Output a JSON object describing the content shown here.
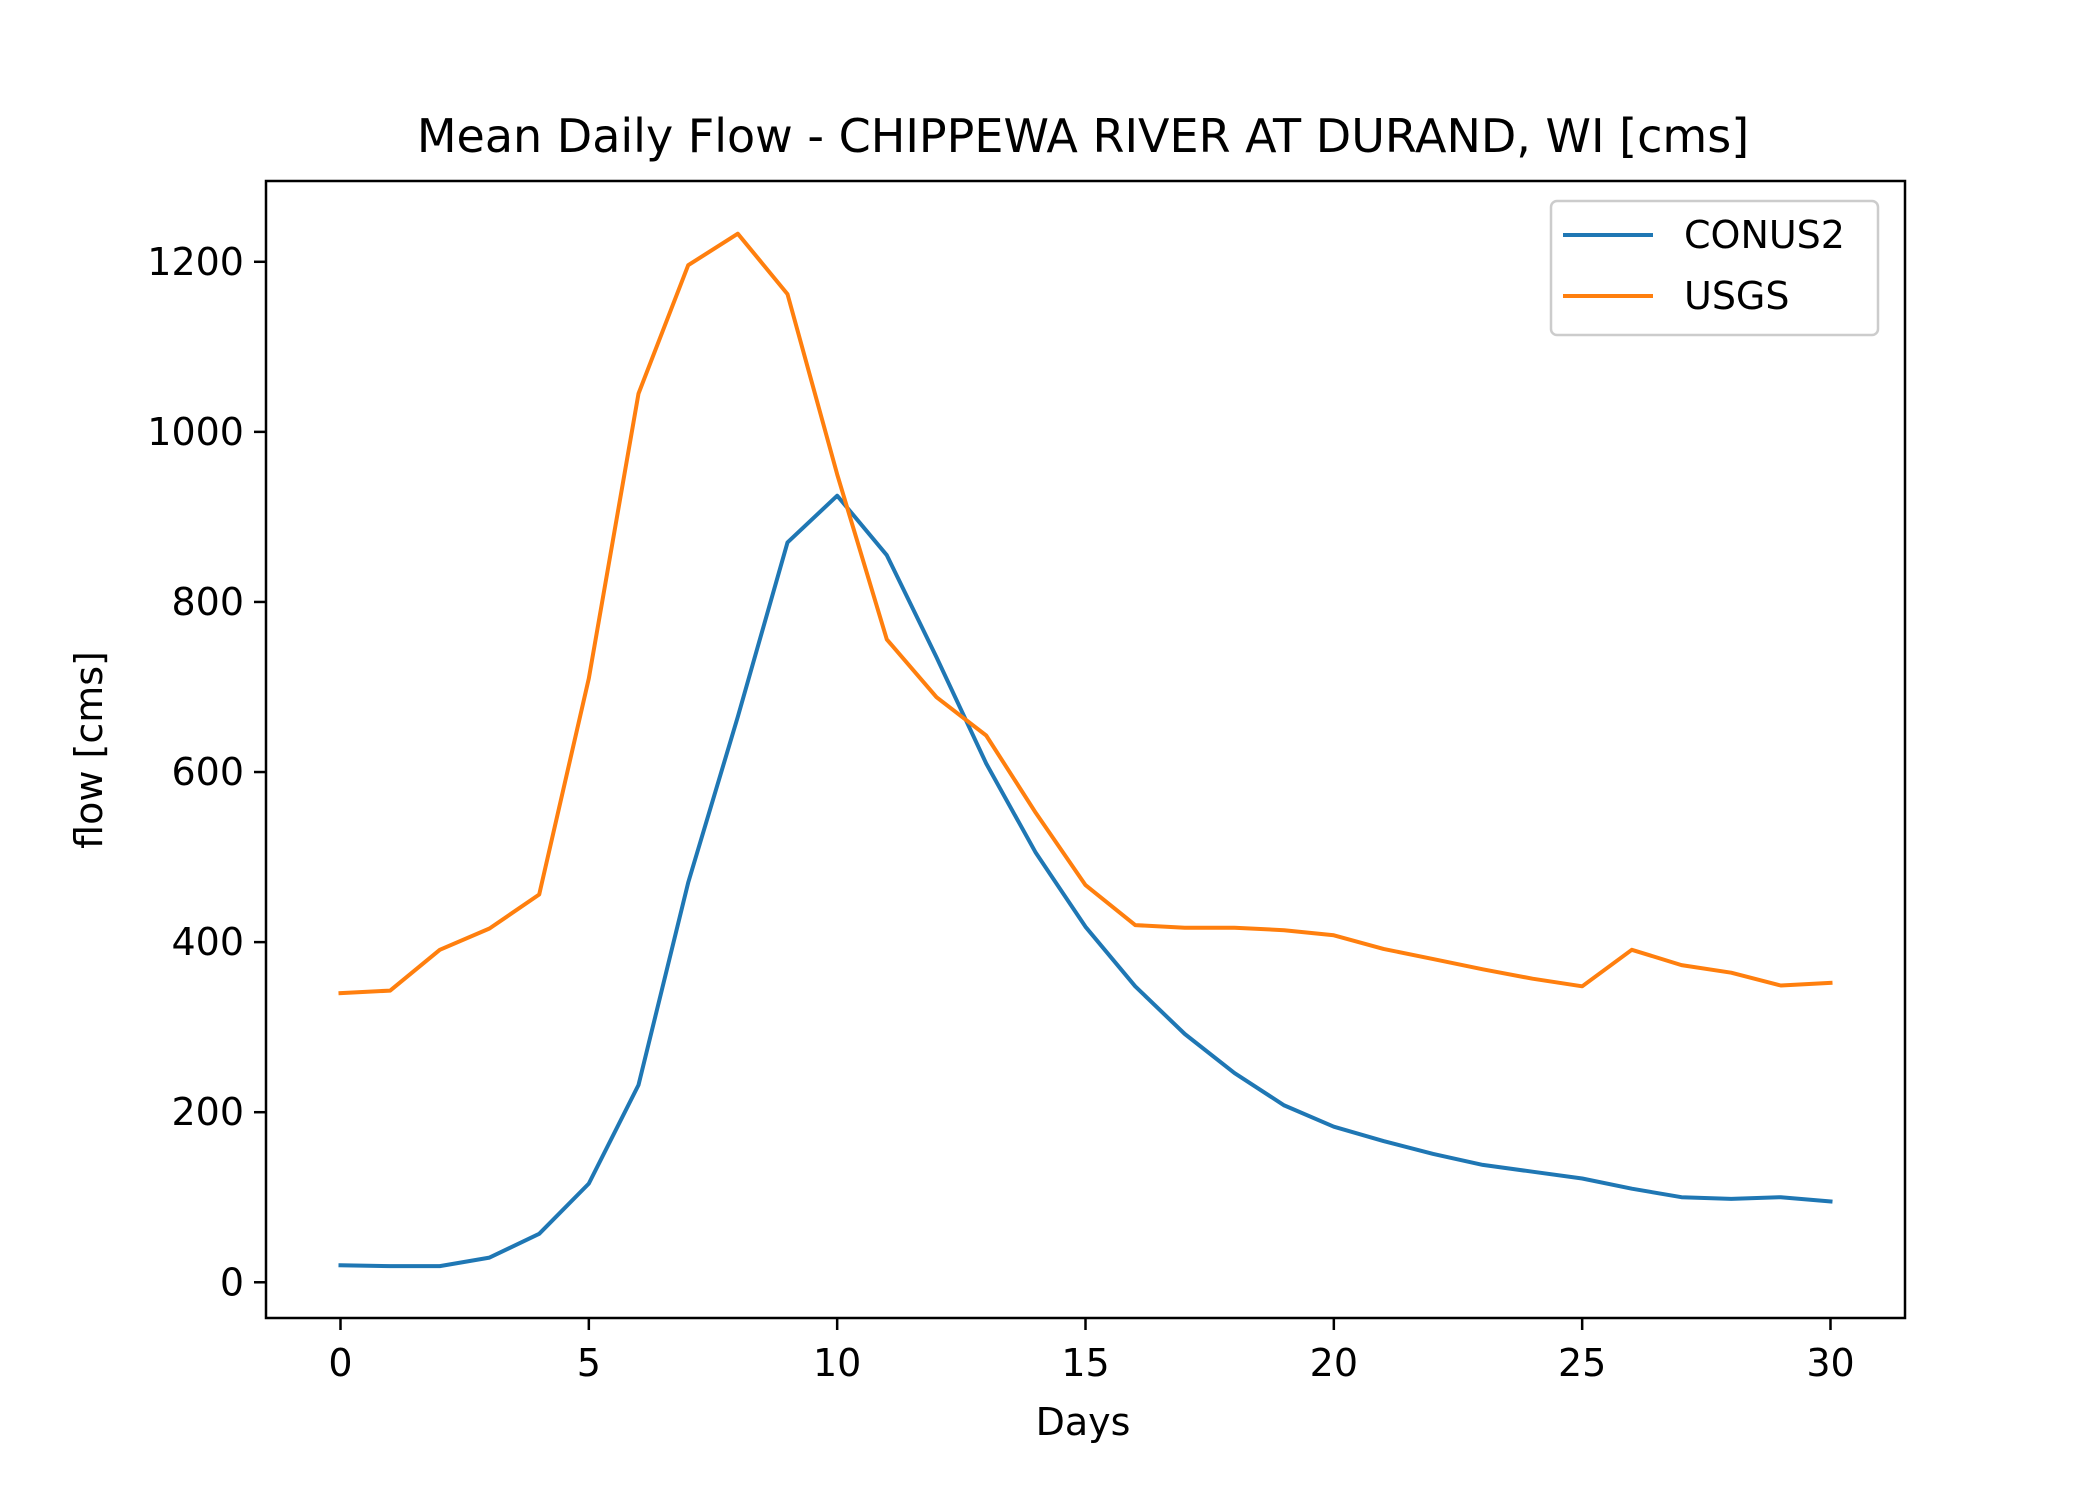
{
  "chart_data": {
    "type": "line",
    "title": "Mean Daily Flow - CHIPPEWA RIVER AT DURAND, WI [cms]",
    "xlabel": "Days",
    "ylabel": "flow [cms]",
    "xlim": [
      -1.5,
      31.5
    ],
    "ylim": [
      -42,
      1295
    ],
    "xticks": [
      0,
      5,
      10,
      15,
      20,
      25,
      30
    ],
    "yticks": [
      0,
      200,
      400,
      600,
      800,
      1000,
      1200
    ],
    "grid": false,
    "legend_position": "top-right",
    "x": [
      0,
      1,
      2,
      3,
      4,
      5,
      6,
      7,
      8,
      9,
      10,
      11,
      12,
      13,
      14,
      15,
      16,
      17,
      18,
      19,
      20,
      21,
      22,
      23,
      24,
      25,
      26,
      27,
      28,
      29,
      30
    ],
    "series": [
      {
        "name": "CONUS2",
        "color": "#1f77b4",
        "values": [
          20,
          19,
          19,
          29,
          57,
          116,
          232,
          470,
          665,
          870,
          925,
          855,
          735,
          610,
          505,
          418,
          348,
          292,
          246,
          208,
          183,
          166,
          151,
          138,
          130,
          122,
          110,
          100,
          98,
          100,
          95
        ]
      },
      {
        "name": "USGS",
        "color": "#ff7f0e",
        "values": [
          340,
          343,
          391,
          416,
          456,
          710,
          1045,
          1196,
          1233,
          1162,
          950,
          756,
          688,
          643,
          552,
          467,
          420,
          417,
          417,
          414,
          408,
          392,
          380,
          368,
          357,
          348,
          391,
          373,
          364,
          349,
          352
        ]
      }
    ]
  }
}
